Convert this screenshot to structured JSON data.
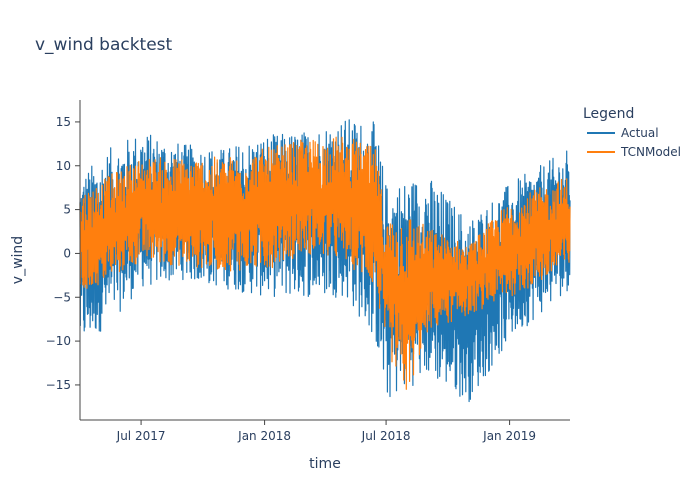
{
  "chart_data": {
    "type": "line",
    "title": "v_wind backtest",
    "xlabel": "time",
    "ylabel": "v_wind",
    "x_range": [
      "2017-04-01",
      "2019-04-01"
    ],
    "x_ticks": [
      {
        "date": "2017-07-01",
        "label": "Jul 2017"
      },
      {
        "date": "2018-01-01",
        "label": "Jan 2018"
      },
      {
        "date": "2018-07-01",
        "label": "Jul 2018"
      },
      {
        "date": "2019-01-01",
        "label": "Jan 2019"
      }
    ],
    "ylim": [
      -19,
      17.5
    ],
    "y_ticks": [
      15,
      10,
      5,
      0,
      -5,
      -10,
      -15
    ],
    "y_tick_labels": [
      "15",
      "10",
      "5",
      "0",
      "−5",
      "−10",
      "−15"
    ],
    "grid": false,
    "legend": {
      "title": "Legend",
      "placement": "top-right"
    },
    "series": [
      {
        "name": "Actual",
        "color": "#1f77b4",
        "envelope": [
          {
            "date": "2017-04-01",
            "min": -11,
            "max": 9
          },
          {
            "date": "2017-05-15",
            "min": -8,
            "max": 12
          },
          {
            "date": "2017-07-01",
            "min": -4,
            "max": 14
          },
          {
            "date": "2017-09-01",
            "min": -3,
            "max": 12.5
          },
          {
            "date": "2017-11-01",
            "min": -4,
            "max": 12
          },
          {
            "date": "2018-01-01",
            "min": -5,
            "max": 13.5
          },
          {
            "date": "2018-03-01",
            "min": -5,
            "max": 14
          },
          {
            "date": "2018-05-01",
            "min": -5,
            "max": 15.5
          },
          {
            "date": "2018-06-15",
            "min": -10,
            "max": 15
          },
          {
            "date": "2018-07-01",
            "min": -17,
            "max": 8
          },
          {
            "date": "2018-09-01",
            "min": -14,
            "max": 9
          },
          {
            "date": "2018-11-01",
            "min": -17,
            "max": 4
          },
          {
            "date": "2019-01-01",
            "min": -10,
            "max": 8
          },
          {
            "date": "2019-04-01",
            "min": -4,
            "max": 12
          }
        ]
      },
      {
        "name": "TCNModel",
        "color": "#ff7f0e",
        "envelope": [
          {
            "date": "2017-04-01",
            "min": -5,
            "max": 7
          },
          {
            "date": "2017-07-01",
            "min": -1,
            "max": 11
          },
          {
            "date": "2017-09-01",
            "min": -1.5,
            "max": 11
          },
          {
            "date": "2017-11-01",
            "min": -2,
            "max": 11
          },
          {
            "date": "2018-01-01",
            "min": -2,
            "max": 12
          },
          {
            "date": "2018-03-01",
            "min": 0,
            "max": 13
          },
          {
            "date": "2018-05-01",
            "min": -1,
            "max": 13.5
          },
          {
            "date": "2018-06-15",
            "min": -4,
            "max": 12
          },
          {
            "date": "2018-07-01",
            "min": -11,
            "max": 4
          },
          {
            "date": "2018-08-01",
            "min": -16.5,
            "max": 5
          },
          {
            "date": "2018-09-01",
            "min": -9,
            "max": 3
          },
          {
            "date": "2018-11-01",
            "min": -7,
            "max": 1
          },
          {
            "date": "2019-01-01",
            "min": -5,
            "max": 6
          },
          {
            "date": "2019-04-01",
            "min": -2,
            "max": 9
          }
        ]
      }
    ]
  }
}
